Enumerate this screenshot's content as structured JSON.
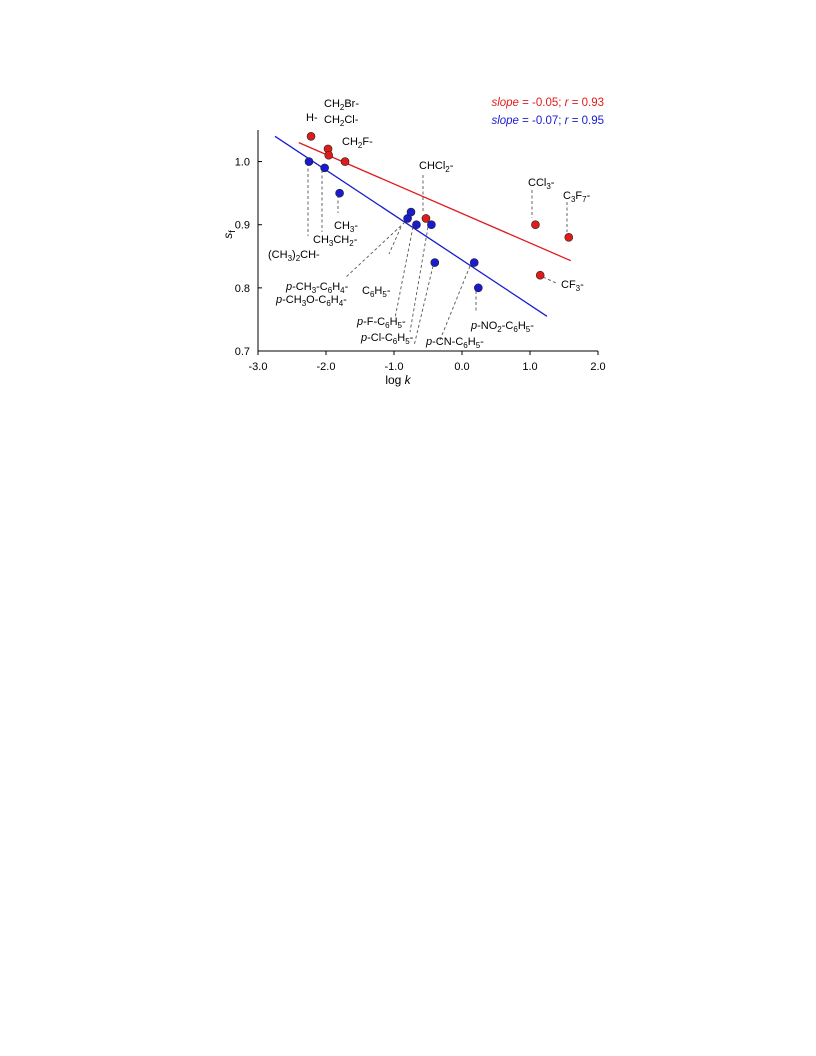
{
  "chart_data": {
    "type": "scatter",
    "xlabel": "log k",
    "ylabel": "s_f",
    "xlim": [
      -3.0,
      2.0
    ],
    "ylim": [
      0.7,
      1.05
    ],
    "x_ticks": [
      {
        "value": -3.0,
        "label": "-3.0"
      },
      {
        "value": -2.0,
        "label": "-2.0"
      },
      {
        "value": -1.0,
        "label": "-1.0"
      },
      {
        "value": 0.0,
        "label": "0.0"
      },
      {
        "value": 1.0,
        "label": "1.0"
      },
      {
        "value": 2.0,
        "label": "2.0"
      }
    ],
    "y_ticks": [
      {
        "value": 0.7,
        "label": "0.7"
      },
      {
        "value": 0.8,
        "label": "0.8"
      },
      {
        "value": 0.9,
        "label": "0.9"
      },
      {
        "value": 1.0,
        "label": "1.0"
      }
    ],
    "grid": false,
    "legend_position": "top-right",
    "series": [
      {
        "color": "#e01b1b",
        "legend": {
          "slope_word": "slope",
          "slope_value": " = -0.05; ",
          "r_word": "r",
          "r_value": " = 0.93"
        },
        "fit_line": {
          "x": [
            -2.4,
            1.6
          ],
          "y": [
            1.03,
            0.843
          ]
        },
        "points": [
          {
            "x": -2.22,
            "y": 1.04
          },
          {
            "x": -1.97,
            "y": 1.02
          },
          {
            "x": -1.96,
            "y": 1.01
          },
          {
            "x": -1.72,
            "y": 1.0
          },
          {
            "x": -0.53,
            "y": 0.91
          },
          {
            "x": 1.08,
            "y": 0.9
          },
          {
            "x": 1.57,
            "y": 0.88
          },
          {
            "x": 1.15,
            "y": 0.82
          }
        ]
      },
      {
        "color": "#1a1ad0",
        "legend": {
          "slope_word": "slope",
          "slope_value": " = -0.07; ",
          "r_word": "r",
          "r_value": " = 0.95"
        },
        "fit_line": {
          "x": [
            -2.75,
            1.25
          ],
          "y": [
            1.04,
            0.755
          ]
        },
        "points": [
          {
            "x": -2.25,
            "y": 1.0
          },
          {
            "x": -2.02,
            "y": 0.99
          },
          {
            "x": -1.8,
            "y": 0.95
          },
          {
            "x": -0.8,
            "y": 0.91
          },
          {
            "x": -0.75,
            "y": 0.92
          },
          {
            "x": -0.67,
            "y": 0.9
          },
          {
            "x": -0.45,
            "y": 0.9
          },
          {
            "x": -0.4,
            "y": 0.84
          },
          {
            "x": 0.18,
            "y": 0.84
          },
          {
            "x": 0.24,
            "y": 0.8
          }
        ]
      }
    ],
    "point_labels": [
      {
        "key": "H",
        "parts": [
          [
            "H-",
            "n"
          ]
        ]
      },
      {
        "key": "CH2Br",
        "parts": [
          [
            "CH",
            "n"
          ],
          [
            "2",
            "sub"
          ],
          [
            "Br-",
            "n"
          ]
        ]
      },
      {
        "key": "CH2Cl",
        "parts": [
          [
            "CH",
            "n"
          ],
          [
            "2",
            "sub"
          ],
          [
            "Cl-",
            "n"
          ]
        ]
      },
      {
        "key": "CH2F",
        "parts": [
          [
            "CH",
            "n"
          ],
          [
            "2",
            "sub"
          ],
          [
            "F-",
            "n"
          ]
        ]
      },
      {
        "key": "CHCl2",
        "parts": [
          [
            "CHCl",
            "n"
          ],
          [
            "2",
            "sub"
          ],
          [
            "-",
            "n"
          ]
        ]
      },
      {
        "key": "CCl3",
        "parts": [
          [
            "CCl",
            "n"
          ],
          [
            "3",
            "sub"
          ],
          [
            "-",
            "n"
          ]
        ]
      },
      {
        "key": "C3F7",
        "parts": [
          [
            "C",
            "n"
          ],
          [
            "3",
            "sub"
          ],
          [
            "F",
            "n"
          ],
          [
            "7",
            "sub"
          ],
          [
            "-",
            "n"
          ]
        ]
      },
      {
        "key": "CF3",
        "parts": [
          [
            "CF",
            "n"
          ],
          [
            "3",
            "sub"
          ],
          [
            "-",
            "n"
          ]
        ]
      },
      {
        "key": "CH3",
        "parts": [
          [
            "CH",
            "n"
          ],
          [
            "3",
            "sub"
          ],
          [
            "-",
            "n"
          ]
        ]
      },
      {
        "key": "CH3CH2",
        "parts": [
          [
            "CH",
            "n"
          ],
          [
            "3",
            "sub"
          ],
          [
            "CH",
            "n"
          ],
          [
            "2",
            "sub"
          ],
          [
            "-",
            "n"
          ]
        ]
      },
      {
        "key": "iPr",
        "parts": [
          [
            "(CH",
            "n"
          ],
          [
            "3",
            "sub"
          ],
          [
            ")",
            "n"
          ],
          [
            "2",
            "sub"
          ],
          [
            "CH-",
            "n"
          ]
        ]
      },
      {
        "key": "pCH3C6H4",
        "parts": [
          [
            "p",
            "i"
          ],
          [
            "-CH",
            "n"
          ],
          [
            "3",
            "sub"
          ],
          [
            "-C",
            "n"
          ],
          [
            "6",
            "sub"
          ],
          [
            "H",
            "n"
          ],
          [
            "4",
            "sub"
          ],
          [
            "-",
            "n"
          ]
        ]
      },
      {
        "key": "pCH3OC6H4",
        "parts": [
          [
            "p",
            "i"
          ],
          [
            "-CH",
            "n"
          ],
          [
            "3",
            "sub"
          ],
          [
            "O-C",
            "n"
          ],
          [
            "6",
            "sub"
          ],
          [
            "H",
            "n"
          ],
          [
            "4",
            "sub"
          ],
          [
            "-",
            "n"
          ]
        ]
      },
      {
        "key": "C6H5",
        "parts": [
          [
            "C",
            "n"
          ],
          [
            "6",
            "sub"
          ],
          [
            "H",
            "n"
          ],
          [
            "5",
            "sub"
          ],
          [
            "-",
            "n"
          ]
        ]
      },
      {
        "key": "pFC6H5",
        "parts": [
          [
            "p",
            "i"
          ],
          [
            "-F-C",
            "n"
          ],
          [
            "6",
            "sub"
          ],
          [
            "H",
            "n"
          ],
          [
            "5",
            "sub"
          ],
          [
            "-",
            "n"
          ]
        ]
      },
      {
        "key": "pClC6H5",
        "parts": [
          [
            "p",
            "i"
          ],
          [
            "-Cl-C",
            "n"
          ],
          [
            "6",
            "sub"
          ],
          [
            "H",
            "n"
          ],
          [
            "5",
            "sub"
          ],
          [
            "-",
            "n"
          ]
        ]
      },
      {
        "key": "pCNC6H5",
        "parts": [
          [
            "p",
            "i"
          ],
          [
            "-CN-C",
            "n"
          ],
          [
            "6",
            "sub"
          ],
          [
            "H",
            "n"
          ],
          [
            "5",
            "sub"
          ],
          [
            "-",
            "n"
          ]
        ]
      },
      {
        "key": "pNO2C6H5",
        "parts": [
          [
            "p",
            "i"
          ],
          [
            "-NO",
            "n"
          ],
          [
            "2",
            "sub"
          ],
          [
            "-C",
            "n"
          ],
          [
            "6",
            "sub"
          ],
          [
            "H",
            "n"
          ],
          [
            "5",
            "sub"
          ],
          [
            "-",
            "n"
          ]
        ]
      }
    ]
  }
}
